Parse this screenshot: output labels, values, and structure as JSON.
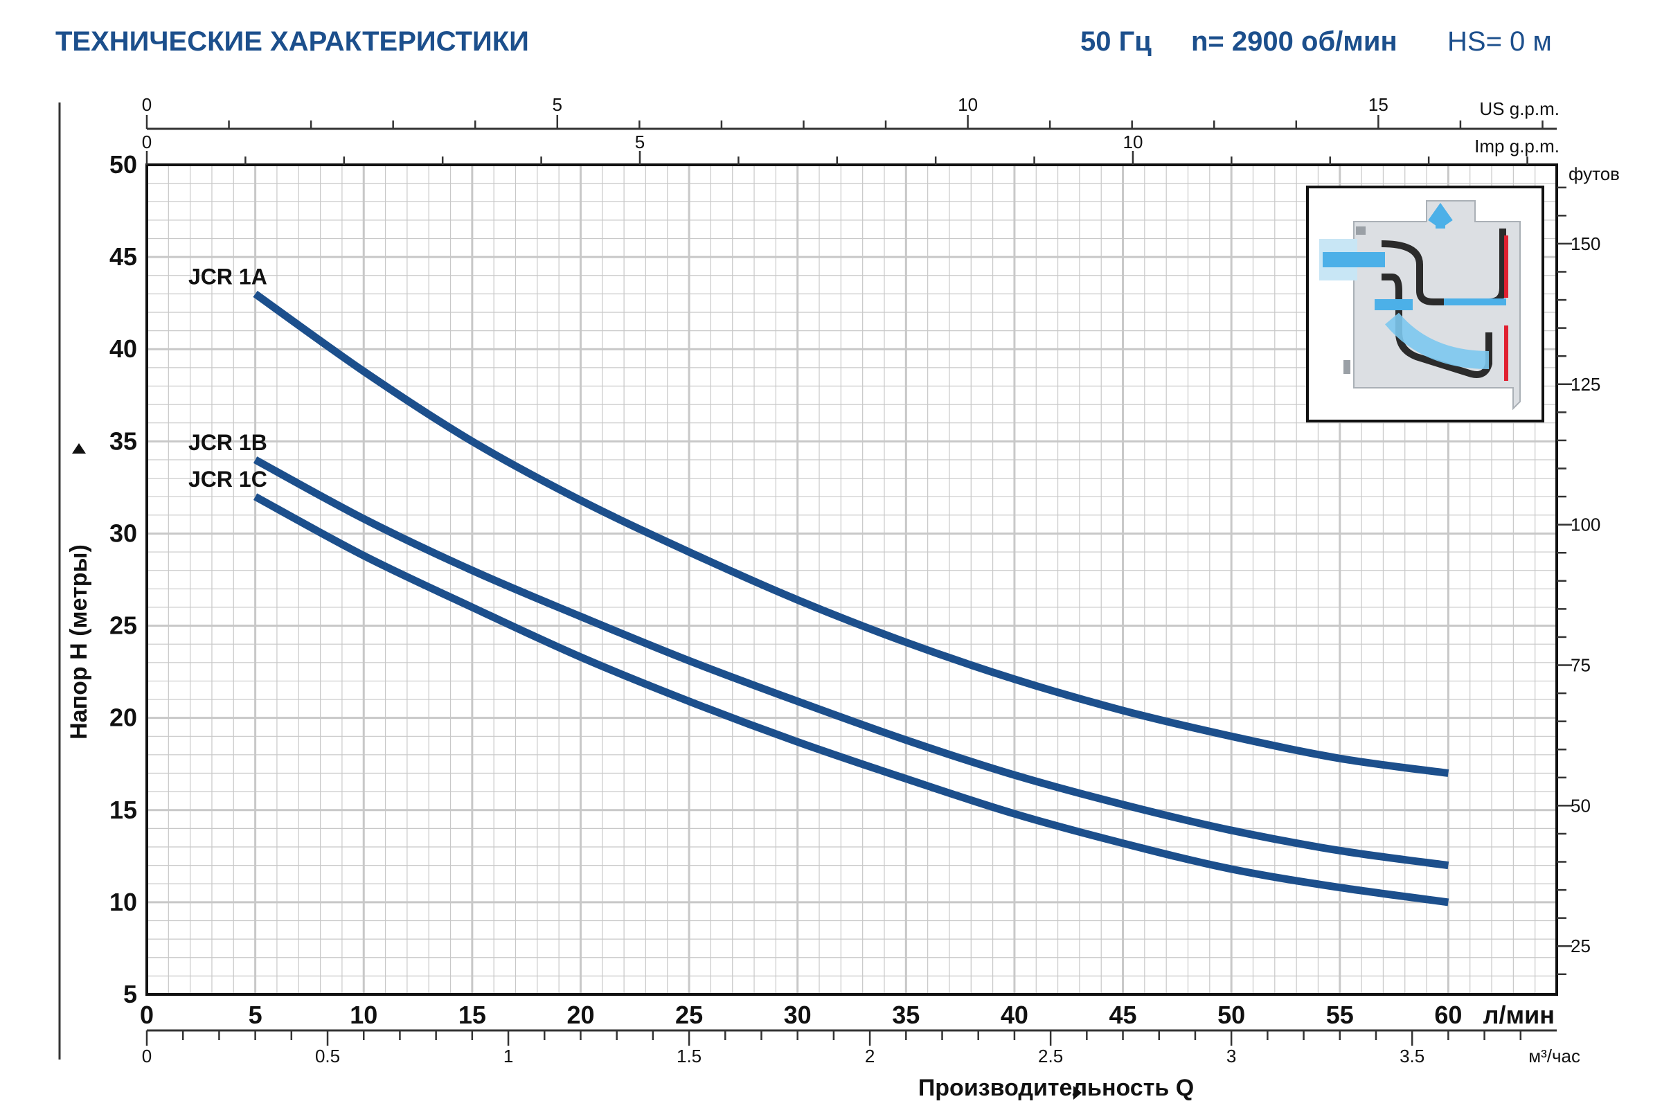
{
  "header": {
    "title": "ТЕХНИЧЕСКИЕ ХАРАКТЕРИСТИКИ",
    "frequency": "50 Гц",
    "speed": "n= 2900 об/мин",
    "suction_height": "HS= 0 м"
  },
  "colors": {
    "curve": "#1c4f8c",
    "header": "#1c4f8c",
    "grid": "#c8c8c8",
    "axis": "#333333"
  },
  "chart_data": {
    "type": "line",
    "title": "",
    "xlabel": "Производительность Q",
    "xunit": "л/мин",
    "ylabel": "Напор Н (метры)",
    "xlim": [
      0,
      65
    ],
    "ylim": [
      5,
      50
    ],
    "xticks": [
      0,
      5,
      10,
      15,
      20,
      25,
      30,
      35,
      40,
      45,
      50,
      55,
      60
    ],
    "yticks": [
      5,
      10,
      15,
      20,
      25,
      30,
      35,
      40,
      45,
      50
    ],
    "grid": true,
    "secondary_axes": {
      "top_us": {
        "unit": "US g.p.m.",
        "ticks": [
          0,
          5,
          10,
          15
        ]
      },
      "top_imp": {
        "unit": "Imp g.p.m.",
        "ticks": [
          0,
          5,
          10
        ]
      },
      "bottom_m3h": {
        "unit": "м³/час",
        "ticks": [
          "0",
          "0.5",
          "1",
          "1.5",
          "2",
          "2.5",
          "3",
          "3.5"
        ]
      },
      "right_feet": {
        "unit": "футов",
        "ticks": [
          25,
          50,
          75,
          100,
          125,
          150
        ]
      }
    },
    "series": [
      {
        "name": "JCR 1A",
        "x": [
          5,
          10,
          15,
          20,
          25,
          30,
          35,
          40,
          45,
          50,
          55,
          60
        ],
        "y": [
          43,
          38.8,
          35,
          31.8,
          29,
          26.4,
          24.1,
          22.1,
          20.4,
          19,
          17.8,
          17
        ]
      },
      {
        "name": "JCR 1B",
        "x": [
          5,
          10,
          15,
          20,
          25,
          30,
          35,
          40,
          45,
          50,
          55,
          60
        ],
        "y": [
          34,
          30.8,
          28,
          25.5,
          23.1,
          20.9,
          18.8,
          16.9,
          15.3,
          13.9,
          12.8,
          12
        ]
      },
      {
        "name": "JCR 1C",
        "x": [
          5,
          10,
          15,
          20,
          25,
          30,
          35,
          40,
          45,
          50,
          55,
          60
        ],
        "y": [
          32,
          28.8,
          26,
          23.3,
          20.9,
          18.7,
          16.7,
          14.8,
          13.2,
          11.8,
          10.8,
          10
        ]
      }
    ]
  }
}
